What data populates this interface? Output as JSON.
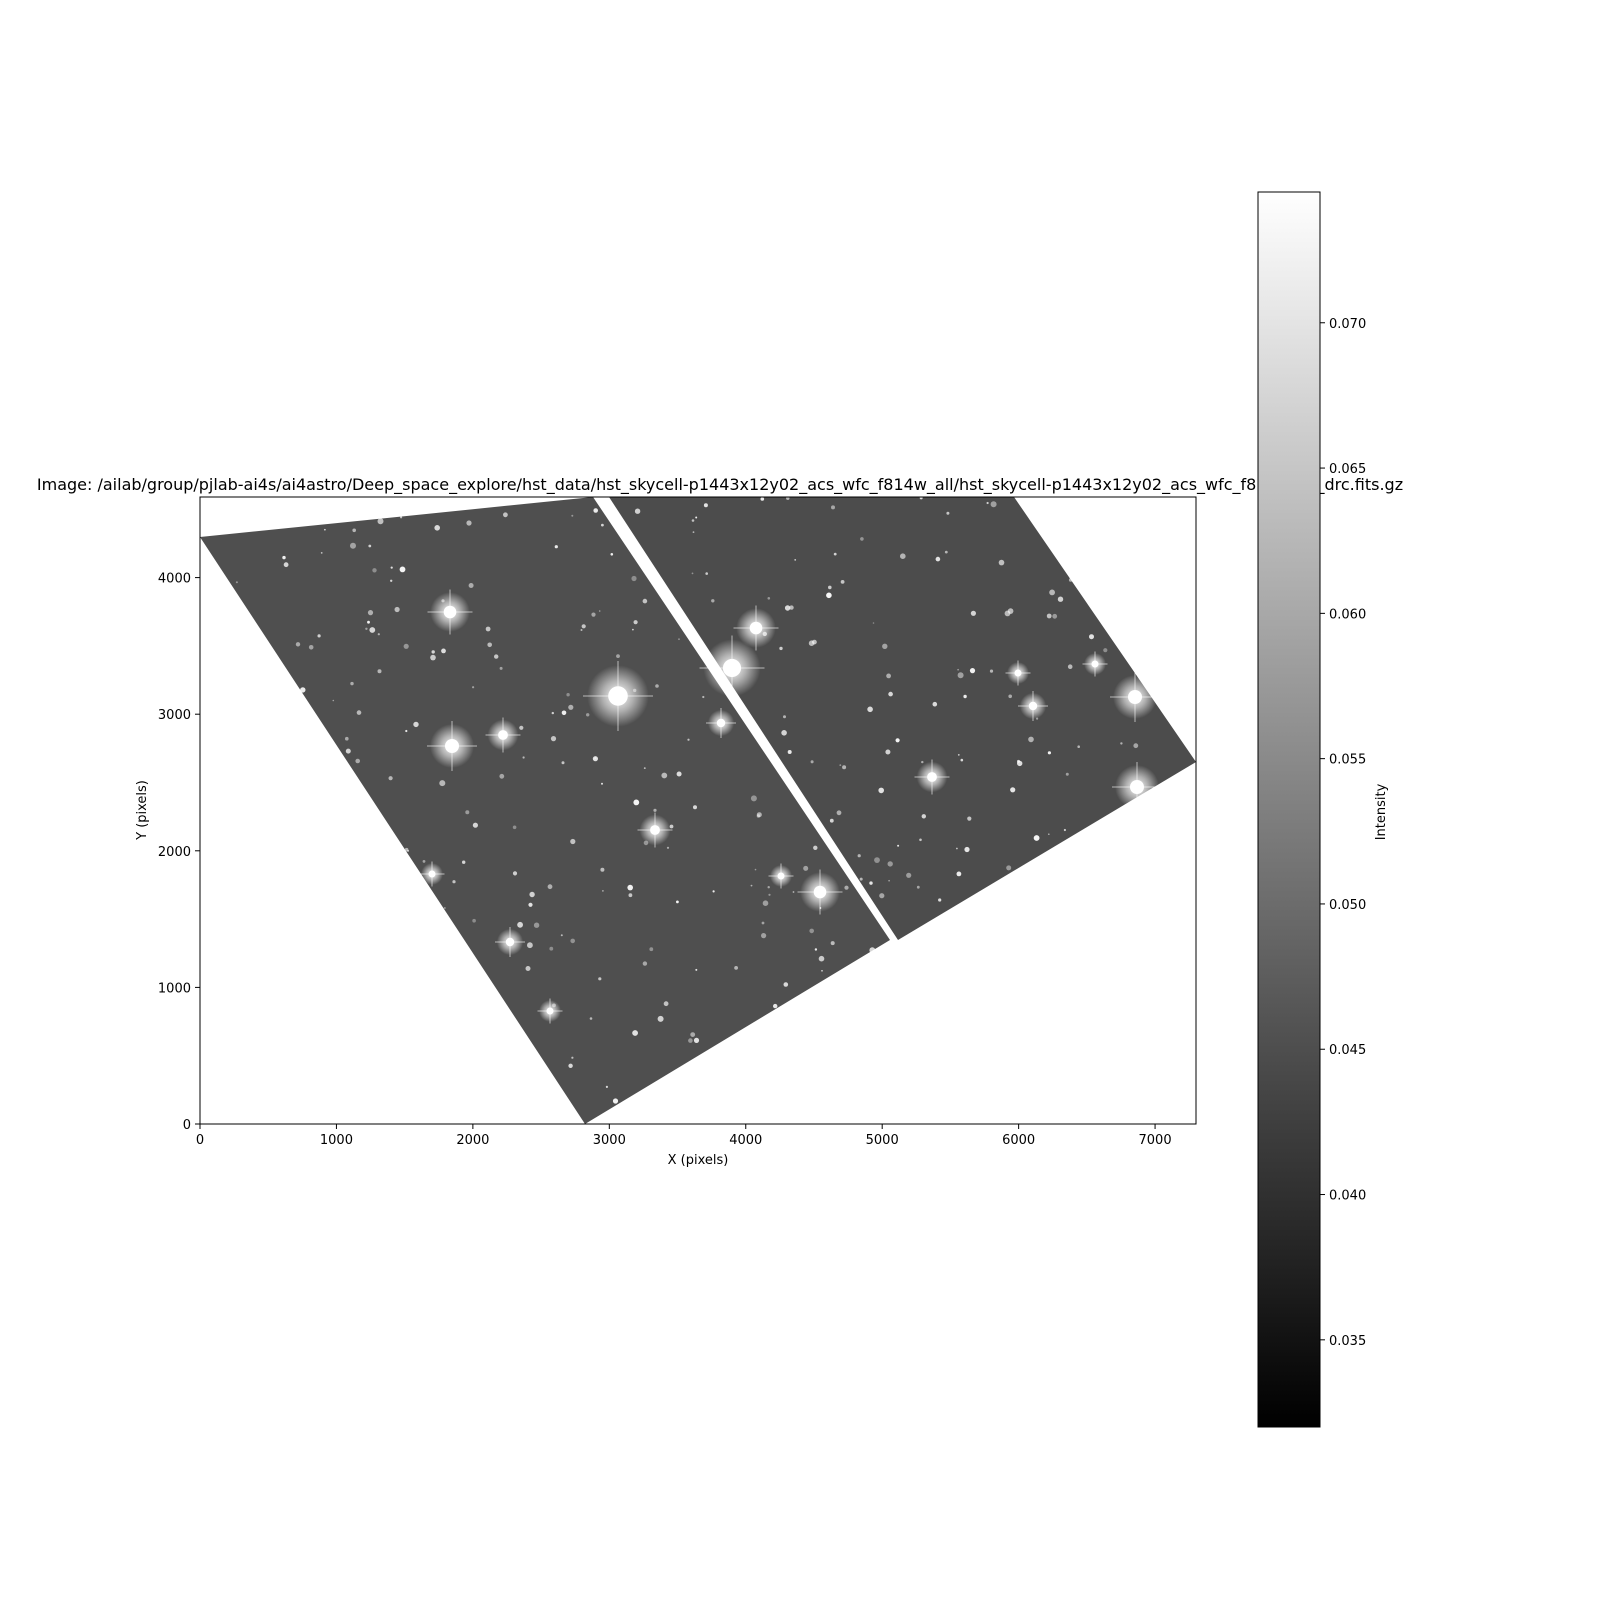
{
  "title": "Image: /ailab/group/pjlab-ai4s/ai4astro/Deep_space_explore/hst_data/hst_skycell-p1443x12y02_acs_wfc_f814w_all/hst_skycell-p1443x12y02_acs_wfc_f814w_all_drc.fits.gz",
  "xlabel": "X (pixels)",
  "ylabel": "Y (pixels)",
  "xlim": [
    0,
    7300
  ],
  "ylim": [
    0,
    4590
  ],
  "xticks": [
    "0",
    "1000",
    "2000",
    "3000",
    "4000",
    "5000",
    "6000",
    "7000"
  ],
  "yticks": [
    "0",
    "1000",
    "2000",
    "3000",
    "4000"
  ],
  "colorbar": {
    "label": "Intensity",
    "cmap": "gray",
    "range": [
      0.032,
      0.0745
    ],
    "ticks": [
      "0.035",
      "0.040",
      "0.045",
      "0.050",
      "0.055",
      "0.060",
      "0.065",
      "0.070"
    ]
  },
  "colors": {
    "background_sky": "#4e4e4e",
    "frame": "#000000"
  }
}
